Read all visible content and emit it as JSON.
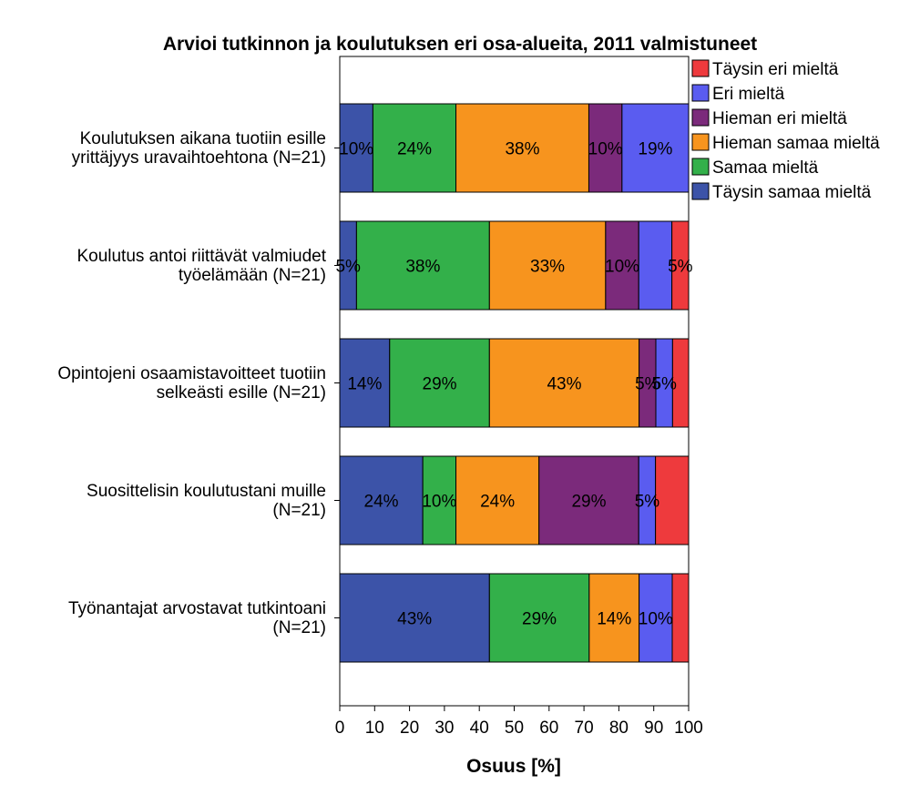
{
  "chart_data": {
    "type": "bar",
    "orientation": "horizontal",
    "stacked": true,
    "title": "Arvioi tutkinnon ja koulutuksen eri osa-alueita, 2011 valmistuneet",
    "xlabel": "Osuus [%]",
    "ylabel": "",
    "xlim": [
      0,
      100
    ],
    "xticks": [
      "0",
      "10",
      "20",
      "30",
      "40",
      "50",
      "60",
      "70",
      "80",
      "90",
      "100"
    ],
    "categories": [
      [
        "Koulutuksen aikana tuotiin esille",
        "yrittäjyys uravaihtoehtona (N=21)"
      ],
      [
        "Koulutus antoi riittävät valmiudet",
        "työelämään (N=21)"
      ],
      [
        "Opintojeni osaamistavoitteet tuotiin",
        "selkeästi esille (N=21)"
      ],
      [
        "Suosittelisin koulutustani muille",
        "(N=21)"
      ],
      [
        "Työnantajat arvostavat tutkintoani",
        "(N=21)"
      ]
    ],
    "series": [
      {
        "name": "Täysin samaa mieltä",
        "color": "#3c53a8",
        "values": [
          9.5,
          4.8,
          14.3,
          23.8,
          42.9
        ],
        "labels": [
          "10%",
          "5%",
          "14%",
          "24%",
          "43%"
        ]
      },
      {
        "name": "Samaa mieltä",
        "color": "#33b04a",
        "values": [
          23.8,
          38.1,
          28.6,
          9.5,
          28.6
        ],
        "labels": [
          "24%",
          "38%",
          "29%",
          "10%",
          "29%"
        ]
      },
      {
        "name": "Hieman samaa mieltä",
        "color": "#f7941e",
        "values": [
          38.1,
          33.3,
          42.9,
          23.8,
          14.3
        ],
        "labels": [
          "38%",
          "33%",
          "43%",
          "24%",
          "14%"
        ]
      },
      {
        "name": "Hieman eri mieltä",
        "color": "#7b2a7b",
        "values": [
          9.5,
          9.5,
          4.8,
          28.6,
          0
        ],
        "labels": [
          "10%",
          "10%",
          "5%",
          "29%",
          ""
        ]
      },
      {
        "name": "Eri mieltä",
        "color": "#5a5cf0",
        "values": [
          19.1,
          9.5,
          4.8,
          4.8,
          9.5
        ],
        "labels": [
          "19%",
          "",
          "5%",
          "5%",
          "10%"
        ]
      },
      {
        "name": "Täysin eri mieltä",
        "color": "#ee3a3d",
        "values": [
          0,
          4.8,
          4.6,
          9.5,
          4.7
        ],
        "labels": [
          "",
          "5%",
          "",
          "",
          ""
        ]
      }
    ],
    "legend": {
      "position": "top-right",
      "order": [
        "Täysin eri mieltä",
        "Eri mieltä",
        "Hieman eri mieltä",
        "Hieman samaa mieltä",
        "Samaa mieltä",
        "Täysin samaa mieltä"
      ]
    },
    "grid": false
  }
}
